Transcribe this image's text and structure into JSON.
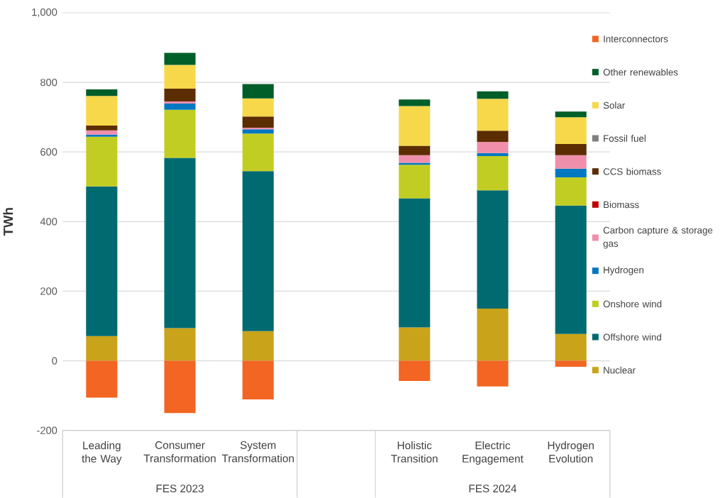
{
  "chart_data": {
    "type": "bar",
    "stacked": true,
    "ylabel": "TWh",
    "categories": [
      "Leading the Way",
      "Consumer Transformation",
      "System Transformation",
      null,
      "Holistic Transition",
      "Electric Engagement",
      "Hydrogen Evolution"
    ],
    "annotations": [
      "FES 2023",
      "FES 2024"
    ],
    "ylim": [
      -200,
      1000
    ],
    "yticks": [
      -200,
      0,
      200,
      400,
      600,
      800,
      {
        "value": 1000,
        "label": "1,000"
      }
    ],
    "grid": "y",
    "legend": "right",
    "series": [
      {
        "name": "Nuclear",
        "color": "#c9a31a",
        "values": [
          71,
          94,
          85,
          null,
          96,
          150,
          77
        ]
      },
      {
        "name": "Offshore wind",
        "color": "#006a71",
        "values": [
          430,
          489,
          460,
          null,
          371,
          340,
          369
        ]
      },
      {
        "name": "Onshore wind",
        "color": "#c2cd23",
        "values": [
          143,
          138,
          108,
          null,
          96,
          98,
          81
        ]
      },
      {
        "name": "Hydrogen",
        "color": "#0078c1",
        "values": [
          6,
          18,
          12,
          null,
          6,
          9,
          25
        ]
      },
      {
        "name": "Carbon capture & storage gas",
        "color": "#ef8fac",
        "values": [
          12,
          6,
          5,
          null,
          22,
          32,
          39
        ]
      },
      {
        "name": "Biomass",
        "color": "#c00000",
        "values": [
          0,
          0,
          0,
          null,
          0,
          0,
          0
        ]
      },
      {
        "name": "CCS biomass",
        "color": "#5c2d00",
        "values": [
          14,
          37,
          32,
          null,
          27,
          32,
          32
        ]
      },
      {
        "name": "Fossil fuel",
        "color": "#7f7f7f",
        "values": [
          0,
          0,
          0,
          null,
          0,
          0,
          0
        ]
      },
      {
        "name": "Solar",
        "color": "#f6d84a",
        "values": [
          85,
          68,
          52,
          null,
          114,
          92,
          77
        ]
      },
      {
        "name": "Other renewables",
        "color": "#005e28",
        "values": [
          19,
          35,
          41,
          null,
          19,
          21,
          16
        ]
      },
      {
        "name": "Interconnectors",
        "color": "#f26522",
        "values": [
          -106,
          -150,
          -111,
          null,
          -58,
          -74,
          -17
        ]
      }
    ]
  }
}
